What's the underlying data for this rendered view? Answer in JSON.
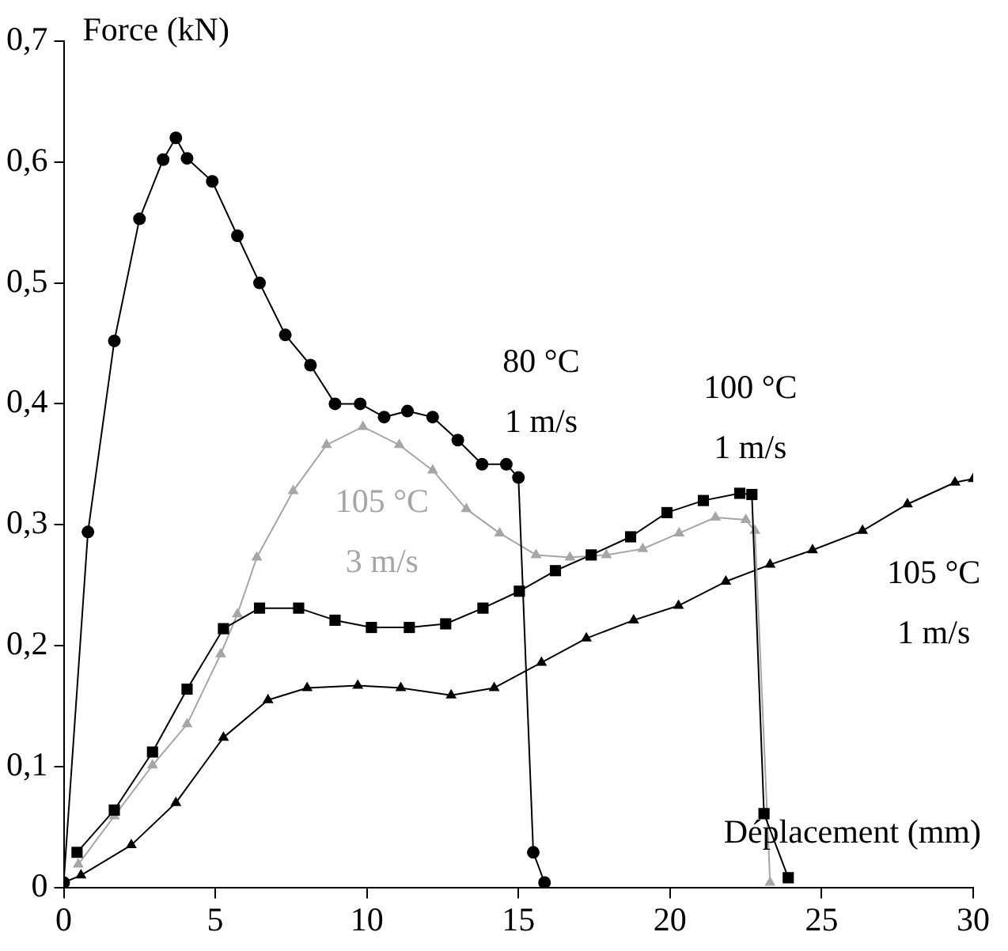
{
  "chart_data": {
    "type": "line",
    "xlabel": "Déplacement (mm)",
    "ylabel": "Force (kN)",
    "xlim": [
      0,
      30
    ],
    "xticks": [
      0,
      5,
      10,
      15,
      20,
      25,
      30
    ],
    "ylim": [
      0,
      0.7
    ],
    "yticks": [
      0,
      {
        "value": 0.1,
        "label": "0,1"
      },
      {
        "value": 0.2,
        "label": "0,2"
      },
      {
        "value": 0.3,
        "label": "0,3"
      },
      {
        "value": 0.4,
        "label": "0,4"
      },
      {
        "value": 0.5,
        "label": "0,5"
      },
      {
        "value": 0.6,
        "label": "0,6"
      },
      {
        "value": 0.7,
        "label": "0,7"
      }
    ],
    "grid": false,
    "legend": false,
    "line_style": "solid",
    "series": [
      {
        "name": "80 °C\n1 m/s",
        "color": "#000000",
        "marker": "circle",
        "x": [
          0,
          0.8,
          1.67,
          2.5,
          3.28,
          3.7,
          4.07,
          4.9,
          5.73,
          6.46,
          7.31,
          8.14,
          8.95,
          9.78,
          10.57,
          11.34,
          12.17,
          13.0,
          13.8,
          14.6,
          15.0,
          15.49,
          15.86
        ],
        "values": [
          0.004,
          0.294,
          0.452,
          0.553,
          0.602,
          0.62,
          0.603,
          0.584,
          0.539,
          0.5,
          0.457,
          0.432,
          0.4,
          0.4,
          0.389,
          0.394,
          0.389,
          0.37,
          0.35,
          0.35,
          0.339,
          0.029,
          0.004
        ]
      },
      {
        "name": "100 °C\n1 m/s",
        "color": "#000000",
        "marker": "square",
        "x": [
          0.44,
          1.67,
          2.93,
          4.07,
          5.27,
          6.46,
          7.75,
          8.95,
          10.15,
          11.4,
          12.6,
          13.83,
          15.03,
          16.22,
          17.4,
          18.7,
          19.9,
          21.1,
          22.3,
          22.7,
          23.1,
          23.9
        ],
        "values": [
          0.029,
          0.064,
          0.112,
          0.164,
          0.214,
          0.231,
          0.231,
          0.221,
          0.215,
          0.215,
          0.218,
          0.231,
          0.245,
          0.262,
          0.275,
          0.29,
          0.31,
          0.32,
          0.326,
          0.325,
          0.061,
          0.008
        ]
      },
      {
        "name": "105 °C\n3 m/s",
        "color": "#a6a6a6",
        "marker": "triangle",
        "x": [
          0.48,
          1.67,
          2.93,
          4.07,
          5.18,
          5.73,
          6.37,
          7.57,
          8.67,
          9.87,
          11.07,
          12.17,
          13.28,
          14.38,
          15.58,
          16.7,
          17.9,
          19.1,
          20.3,
          21.5,
          22.5,
          22.8,
          23.3
        ],
        "values": [
          0.019,
          0.059,
          0.101,
          0.135,
          0.193,
          0.226,
          0.273,
          0.328,
          0.366,
          0.381,
          0.366,
          0.345,
          0.313,
          0.293,
          0.275,
          0.273,
          0.275,
          0.28,
          0.293,
          0.306,
          0.304,
          0.295,
          0.004
        ]
      },
      {
        "name": "105 °C\n1 m/s",
        "color": "#000000",
        "marker": "triangle",
        "x": [
          0,
          0.57,
          2.23,
          3.7,
          5.27,
          6.74,
          8.03,
          9.7,
          11.12,
          12.78,
          14.2,
          15.76,
          17.24,
          18.8,
          20.28,
          21.84,
          23.3,
          24.7,
          26.35,
          27.83,
          29.4,
          30
        ],
        "values": [
          0.004,
          0.01,
          0.035,
          0.07,
          0.124,
          0.155,
          0.165,
          0.167,
          0.165,
          0.159,
          0.165,
          0.186,
          0.206,
          0.221,
          0.233,
          0.253,
          0.267,
          0.279,
          0.295,
          0.317,
          0.335,
          0.338
        ]
      }
    ]
  }
}
